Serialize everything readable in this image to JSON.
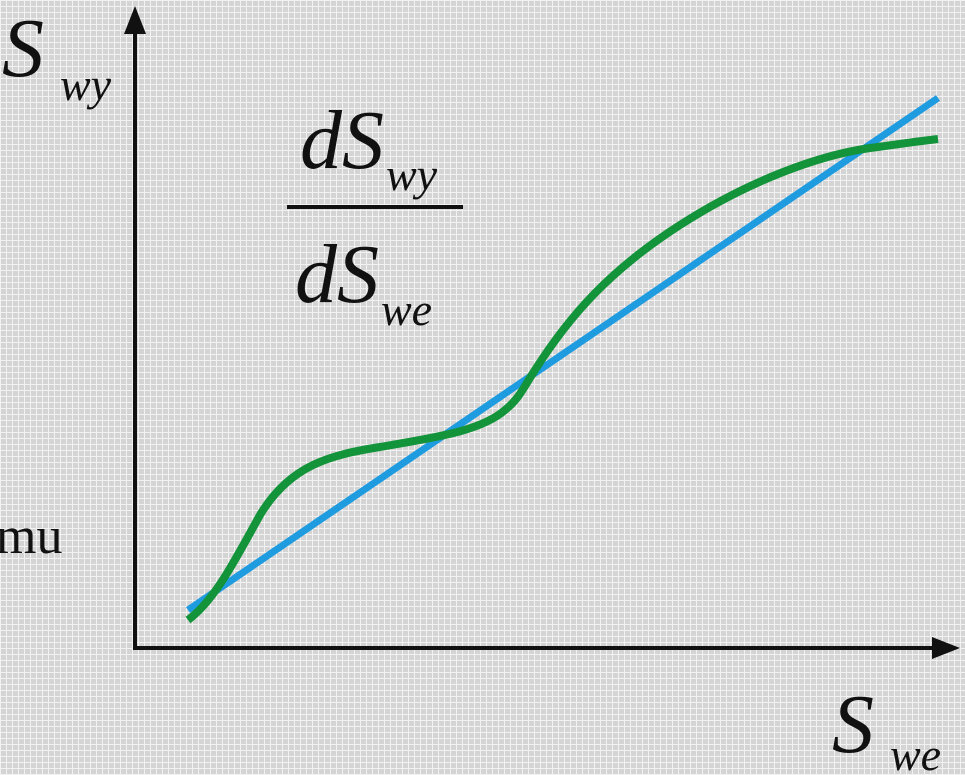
{
  "y_axis_label": {
    "main": "S",
    "sub": "wy"
  },
  "fraction": {
    "numerator": {
      "main": "dS",
      "sub": "wy"
    },
    "denominator": {
      "main": "dS",
      "sub": "we"
    }
  },
  "x_axis_label": {
    "main": "S",
    "sub": "we"
  },
  "side_text": "mu"
}
